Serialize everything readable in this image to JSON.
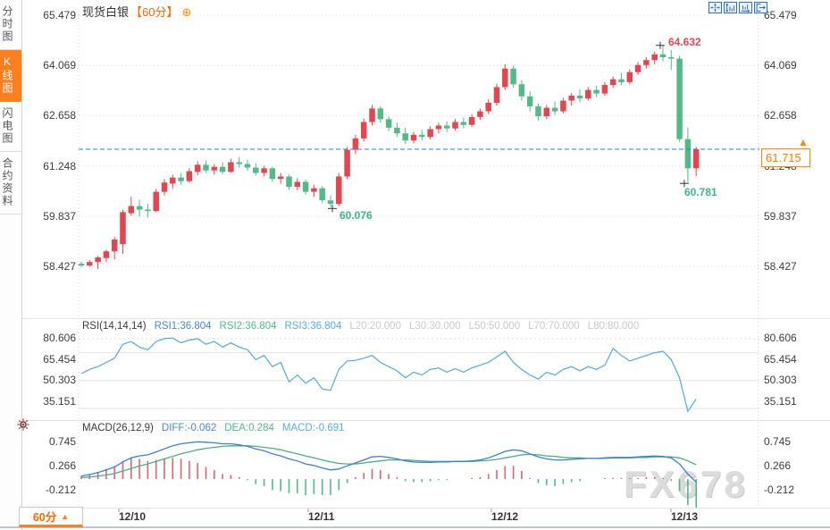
{
  "window": {
    "title": "现货白银 60分 K线图"
  },
  "sidebar": {
    "tabs": [
      {
        "id": "time-chart",
        "label": "分时图",
        "active": false
      },
      {
        "id": "kline-chart",
        "label": "K线图",
        "active": true
      },
      {
        "id": "flash-chart",
        "label": "闪电图",
        "active": false
      },
      {
        "id": "contract-info",
        "label": "合约资料",
        "active": false
      }
    ]
  },
  "header": {
    "symbol": "现货白银",
    "period": "【60分】",
    "add_icon": "⊕"
  },
  "toolbar": {
    "icons": [
      "crosshair-icon",
      "y-axis-zoom-icon",
      "x-axis-zoom-icon",
      "restore-view-icon"
    ]
  },
  "price_box": {
    "value": "61.715",
    "arrow": "▲"
  },
  "annotations": {
    "high": "64.632",
    "low": "60.781",
    "swing_low": "60.076"
  },
  "main_axis_labels": [
    "65.479",
    "64.069",
    "62.658",
    "61.248",
    "59.837",
    "58.427"
  ],
  "rsi_axis_labels": [
    "80.606",
    "65.454",
    "50.303",
    "35.151"
  ],
  "macd_axis_labels": [
    "0.745",
    "0.266",
    "-0.212"
  ],
  "rsi_header": [
    {
      "text": "RSI(14,14,14)",
      "color": "#3a3a3a"
    },
    {
      "text": "RSI1:36.804",
      "color": "#4a86c8"
    },
    {
      "text": "RSI2:36.804",
      "color": "#50b98c"
    },
    {
      "text": "RSI3:36.804",
      "color": "#57aedd"
    },
    {
      "text": "L20:20.000",
      "color": "#c8c8c8"
    },
    {
      "text": "L30:30.000",
      "color": "#c8c8c8"
    },
    {
      "text": "L50:50.000",
      "color": "#c8c8c8"
    },
    {
      "text": "L70:70.000",
      "color": "#c8c8c8"
    },
    {
      "text": "L80:80.000",
      "color": "#c8c8c8"
    }
  ],
  "macd_header": [
    {
      "text": "MACD(26,12,9)",
      "color": "#3a3a3a"
    },
    {
      "text": "DIFF:-0.062",
      "color": "#4a86c8"
    },
    {
      "text": "DEA:0.284",
      "color": "#50b98c"
    },
    {
      "text": "MACD:-0.691",
      "color": "#57aedd"
    }
  ],
  "x_axis": {
    "dates": [
      "12/10",
      "12/11",
      "12/12",
      "12/13"
    ]
  },
  "bottom_tab": {
    "label": "60分",
    "arrow": "▲"
  },
  "watermark": "FX678",
  "colors": {
    "bull": "#e2474f",
    "bear": "#53b987",
    "accent_orange": "#ff7e1e",
    "price_line": "#2e7cd6",
    "rsi_line": "#58a6d8",
    "macd_diff": "#3f7ed8",
    "macd_dea": "#4caf7d",
    "hist_pos": "#e2626e",
    "hist_neg": "#53b987",
    "grid_solid": "#e2e2e2",
    "grid_dot": "#d8d8d8",
    "toolbar_blue": "#2f6fc1"
  },
  "chart_data": [
    {
      "type": "candlestick",
      "title": "现货白银 【60分】",
      "y_ticks": [
        65.479,
        64.069,
        62.658,
        61.248,
        59.837,
        58.427
      ],
      "x_dates": [
        "12/10",
        "12/11",
        "12/12",
        "12/13"
      ],
      "current_price": 61.715,
      "high_marker": {
        "index": 70,
        "price": 64.632
      },
      "low_marker": {
        "index": 73,
        "price": 60.781
      },
      "swing_low_marker": {
        "index": 30,
        "price": 60.076
      },
      "candles": [
        [
          58.5,
          58.56,
          58.4,
          58.45
        ],
        [
          58.45,
          58.6,
          58.42,
          58.55
        ],
        [
          58.55,
          58.72,
          58.35,
          58.68
        ],
        [
          58.66,
          58.9,
          58.55,
          58.85
        ],
        [
          58.85,
          59.25,
          58.62,
          59.18
        ],
        [
          59.05,
          60.02,
          58.78,
          59.95
        ],
        [
          59.92,
          60.38,
          59.85,
          60.12
        ],
        [
          60.12,
          60.3,
          59.82,
          60.02
        ],
        [
          60.02,
          60.18,
          59.8,
          59.98
        ],
        [
          59.98,
          60.6,
          59.95,
          60.52
        ],
        [
          60.52,
          60.88,
          60.42,
          60.78
        ],
        [
          60.75,
          61.0,
          60.6,
          60.92
        ],
        [
          60.92,
          61.05,
          60.72,
          60.82
        ],
        [
          60.82,
          61.18,
          60.78,
          61.1
        ],
        [
          61.08,
          61.38,
          60.98,
          61.28
        ],
        [
          61.28,
          61.4,
          61.05,
          61.12
        ],
        [
          61.12,
          61.3,
          61.0,
          61.22
        ],
        [
          61.22,
          61.35,
          61.02,
          61.08
        ],
        [
          61.08,
          61.45,
          61.05,
          61.35
        ],
        [
          61.35,
          61.5,
          61.2,
          61.3
        ],
        [
          61.3,
          61.42,
          61.12,
          61.2
        ],
        [
          61.2,
          61.32,
          60.98,
          61.05
        ],
        [
          61.05,
          61.25,
          60.95,
          61.18
        ],
        [
          61.18,
          61.22,
          60.8,
          60.88
        ],
        [
          60.88,
          61.05,
          60.75,
          60.95
        ],
        [
          60.95,
          61.0,
          60.58,
          60.66
        ],
        [
          60.66,
          60.9,
          60.56,
          60.8
        ],
        [
          60.8,
          60.86,
          60.44,
          60.52
        ],
        [
          60.52,
          60.72,
          60.38,
          60.62
        ],
        [
          60.62,
          60.68,
          60.2,
          60.28
        ],
        [
          60.28,
          60.42,
          60.076,
          60.18
        ],
        [
          60.18,
          61.05,
          60.12,
          60.95
        ],
        [
          60.95,
          61.78,
          60.88,
          61.7
        ],
        [
          61.7,
          62.12,
          61.58,
          62.02
        ],
        [
          62.02,
          62.58,
          61.94,
          62.48
        ],
        [
          62.48,
          62.96,
          62.38,
          62.86
        ],
        [
          62.86,
          62.92,
          62.46,
          62.56
        ],
        [
          62.56,
          62.64,
          62.22,
          62.32
        ],
        [
          62.32,
          62.46,
          62.06,
          62.16
        ],
        [
          62.16,
          62.32,
          61.86,
          61.96
        ],
        [
          61.96,
          62.2,
          61.88,
          62.12
        ],
        [
          62.12,
          62.26,
          61.96,
          62.06
        ],
        [
          62.06,
          62.36,
          62.0,
          62.28
        ],
        [
          62.28,
          62.46,
          62.16,
          62.38
        ],
        [
          62.38,
          62.5,
          62.2,
          62.3
        ],
        [
          62.3,
          62.56,
          62.24,
          62.48
        ],
        [
          62.48,
          62.6,
          62.3,
          62.4
        ],
        [
          62.4,
          62.7,
          62.34,
          62.62
        ],
        [
          62.62,
          62.86,
          62.54,
          62.78
        ],
        [
          62.78,
          63.12,
          62.7,
          63.02
        ],
        [
          63.02,
          63.56,
          62.94,
          63.46
        ],
        [
          63.46,
          64.1,
          63.38,
          63.98
        ],
        [
          63.98,
          64.06,
          63.44,
          63.54
        ],
        [
          63.54,
          63.66,
          63.08,
          63.2
        ],
        [
          63.2,
          63.34,
          62.78,
          62.92
        ],
        [
          62.92,
          63.0,
          62.52,
          62.64
        ],
        [
          62.64,
          62.96,
          62.56,
          62.88
        ],
        [
          62.88,
          63.06,
          62.68,
          62.78
        ],
        [
          62.78,
          63.16,
          62.72,
          63.08
        ],
        [
          63.08,
          63.3,
          62.94,
          63.22
        ],
        [
          63.22,
          63.4,
          63.04,
          63.14
        ],
        [
          63.14,
          63.46,
          63.08,
          63.38
        ],
        [
          63.38,
          63.5,
          63.18,
          63.28
        ],
        [
          63.28,
          63.6,
          63.22,
          63.52
        ],
        [
          63.52,
          63.76,
          63.44,
          63.68
        ],
        [
          63.68,
          63.86,
          63.52,
          63.6
        ],
        [
          63.6,
          63.96,
          63.54,
          63.88
        ],
        [
          63.88,
          64.16,
          63.8,
          64.08
        ],
        [
          64.08,
          64.3,
          63.98,
          64.22
        ],
        [
          64.22,
          64.46,
          64.1,
          64.38
        ],
        [
          64.38,
          64.632,
          64.18,
          64.3
        ],
        [
          64.3,
          64.5,
          63.94,
          64.26
        ],
        [
          64.26,
          64.34,
          61.92,
          62.0
        ],
        [
          62.0,
          62.32,
          60.781,
          61.18
        ],
        [
          61.18,
          61.78,
          60.96,
          61.715
        ]
      ]
    },
    {
      "type": "line",
      "name": "RSI(14,14,14)",
      "rsi1": 36.804,
      "rsi2": 36.804,
      "rsi3": 36.804,
      "levels": [
        20,
        30,
        50,
        70,
        80
      ],
      "y_ticks": [
        80.606,
        65.454,
        50.303,
        35.151
      ],
      "values": [
        55,
        58,
        60,
        63,
        66,
        76,
        78,
        74,
        72,
        78,
        80,
        80.5,
        77,
        79,
        80,
        76,
        78,
        74,
        77,
        74,
        72,
        65,
        68,
        60,
        63,
        49,
        54,
        48,
        52,
        44,
        43,
        58,
        64,
        64.5,
        66,
        68,
        63,
        60,
        57,
        52,
        56,
        54,
        58,
        59,
        56,
        58.5,
        56,
        59,
        61,
        63,
        67,
        71,
        63,
        58,
        54,
        51,
        56,
        54,
        58,
        60,
        57,
        60,
        58,
        61,
        73,
        68,
        64,
        66,
        68,
        70,
        71,
        65,
        52,
        28,
        36.8
      ]
    },
    {
      "type": "macd",
      "name": "MACD(26,12,9)",
      "diff_last": -0.062,
      "dea_last": 0.284,
      "macd_last": -0.691,
      "y_ticks": [
        0.745,
        0.266,
        -0.212
      ],
      "diff": [
        0.06,
        0.09,
        0.13,
        0.18,
        0.24,
        0.34,
        0.42,
        0.46,
        0.48,
        0.54,
        0.6,
        0.66,
        0.7,
        0.72,
        0.74,
        0.73,
        0.72,
        0.7,
        0.7,
        0.68,
        0.65,
        0.6,
        0.56,
        0.5,
        0.46,
        0.4,
        0.36,
        0.3,
        0.27,
        0.22,
        0.18,
        0.2,
        0.26,
        0.32,
        0.38,
        0.44,
        0.45,
        0.43,
        0.4,
        0.36,
        0.34,
        0.33,
        0.33,
        0.34,
        0.34,
        0.35,
        0.35,
        0.36,
        0.38,
        0.42,
        0.48,
        0.55,
        0.58,
        0.56,
        0.5,
        0.44,
        0.4,
        0.38,
        0.38,
        0.39,
        0.4,
        0.41,
        0.41,
        0.42,
        0.43,
        0.43,
        0.43,
        0.44,
        0.45,
        0.46,
        0.45,
        0.42,
        0.3,
        0.1,
        -0.062
      ],
      "dea": [
        0.03,
        0.04,
        0.06,
        0.08,
        0.11,
        0.16,
        0.21,
        0.26,
        0.3,
        0.35,
        0.4,
        0.45,
        0.5,
        0.54,
        0.58,
        0.61,
        0.63,
        0.65,
        0.66,
        0.66,
        0.66,
        0.65,
        0.63,
        0.61,
        0.58,
        0.54,
        0.5,
        0.46,
        0.42,
        0.38,
        0.34,
        0.31,
        0.3,
        0.3,
        0.32,
        0.34,
        0.36,
        0.38,
        0.38,
        0.38,
        0.37,
        0.36,
        0.35,
        0.35,
        0.35,
        0.35,
        0.35,
        0.35,
        0.36,
        0.37,
        0.39,
        0.42,
        0.45,
        0.48,
        0.49,
        0.48,
        0.46,
        0.45,
        0.43,
        0.42,
        0.42,
        0.41,
        0.41,
        0.41,
        0.42,
        0.42,
        0.42,
        0.43,
        0.43,
        0.44,
        0.44,
        0.44,
        0.42,
        0.36,
        0.284
      ]
    }
  ]
}
